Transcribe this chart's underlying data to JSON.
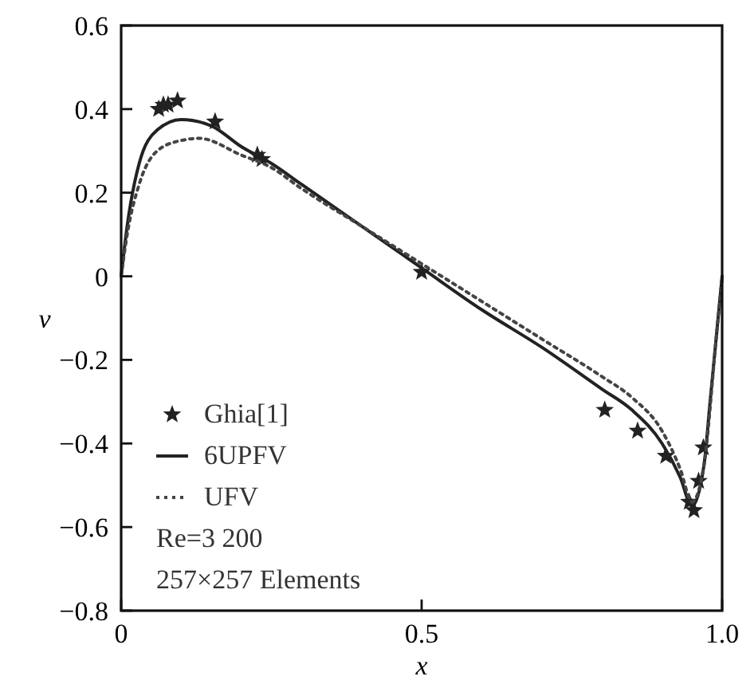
{
  "chart_data": {
    "type": "line",
    "xlabel": "x",
    "ylabel": "v",
    "xlim": [
      0,
      1
    ],
    "xticks": [
      0,
      0.5,
      {
        "value": 1,
        "label": "1.0"
      }
    ],
    "ylim": [
      -0.8,
      0.6
    ],
    "yticks": [
      {
        "value": -0.8,
        "label": "−0.8"
      },
      {
        "value": -0.6,
        "label": "−0.6"
      },
      {
        "value": -0.4,
        "label": "−0.4"
      },
      {
        "value": -0.2,
        "label": "−0.2"
      },
      0,
      0.2,
      0.4,
      0.6
    ],
    "grid": false,
    "legend": "bottom left",
    "annotations": [
      "Re=3 200",
      "257×257 Elements"
    ],
    "series": [
      {
        "name": "Ghia[1]",
        "type": "scatter",
        "marker": "star",
        "color": "#222222",
        "x": [
          0.0625,
          0.0703,
          0.0781,
          0.0938,
          0.1563,
          0.2266,
          0.2344,
          0.5,
          0.8047,
          0.8594,
          0.9063,
          0.9453,
          0.9531,
          0.9609,
          0.9688
        ],
        "values": [
          0.4,
          0.41,
          0.41,
          0.42,
          0.37,
          0.29,
          0.28,
          0.01,
          -0.32,
          -0.37,
          -0.43,
          -0.54,
          -0.56,
          -0.49,
          -0.41
        ]
      },
      {
        "name": "6UPFV",
        "line_style": "solid",
        "color": "#222222",
        "x": [
          0,
          0.01,
          0.03,
          0.06,
          0.1,
          0.15,
          0.2,
          0.25,
          0.3,
          0.4,
          0.5,
          0.6,
          0.7,
          0.8,
          0.85,
          0.9,
          0.93,
          0.95,
          0.97,
          0.98,
          0.99,
          1.0
        ],
        "values": [
          0,
          0.12,
          0.27,
          0.35,
          0.375,
          0.36,
          0.31,
          0.27,
          0.22,
          0.12,
          0.02,
          -0.08,
          -0.17,
          -0.27,
          -0.32,
          -0.4,
          -0.48,
          -0.55,
          -0.45,
          -0.3,
          -0.15,
          0
        ]
      },
      {
        "name": "UFV",
        "line_style": "dotted",
        "color": "#444444",
        "x": [
          0,
          0.01,
          0.03,
          0.06,
          0.1,
          0.13,
          0.2,
          0.25,
          0.3,
          0.4,
          0.5,
          0.6,
          0.7,
          0.8,
          0.85,
          0.9,
          0.93,
          0.95,
          0.97,
          0.99,
          1.0
        ],
        "values": [
          0,
          0.1,
          0.22,
          0.3,
          0.325,
          0.33,
          0.29,
          0.26,
          0.21,
          0.12,
          0.03,
          -0.06,
          -0.15,
          -0.24,
          -0.29,
          -0.37,
          -0.46,
          -0.54,
          -0.45,
          -0.15,
          0
        ]
      }
    ]
  }
}
